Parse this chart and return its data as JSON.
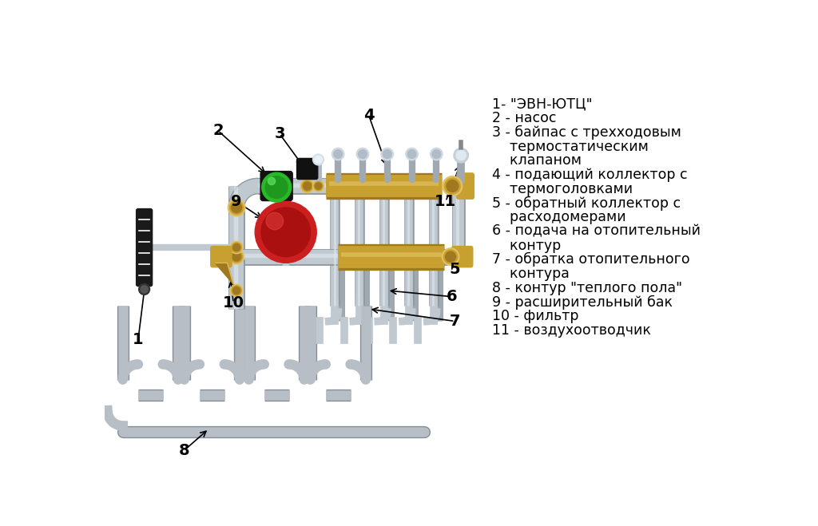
{
  "bg_color": "#ffffff",
  "pipe_color": "#c0c8d0",
  "pipe_highlight": "#e0e8f0",
  "pipe_shadow": "#9098a0",
  "brass_color": "#c8a030",
  "brass_dark": "#a07820",
  "brass_light": "#e0c060",
  "black_color": "#111111",
  "green_color": "#30b830",
  "green_dark": "#208820",
  "red_color": "#cc2020",
  "red_dark": "#881010",
  "gray_color": "#c0c0c0",
  "label_fontsize": 12.5,
  "number_fontsize": 14,
  "legend_lines": [
    "1- \"ЭВН-ЮТЦ\"",
    "2 - насос",
    "3 - байпас с трехходовым",
    "    термостатическим",
    "    клапаном",
    "4 - подающий коллектор с",
    "    термоголовками",
    "5 - обратный коллектор с",
    "    расходомерами",
    "6 - подача на отопительный",
    "    контур",
    "7 - обратка отопительного",
    "    контура",
    "8 - контур \"теплого пола\"",
    "9 - расширительный бак",
    "10 - фильтр",
    "11 - воздухоотводчик"
  ]
}
